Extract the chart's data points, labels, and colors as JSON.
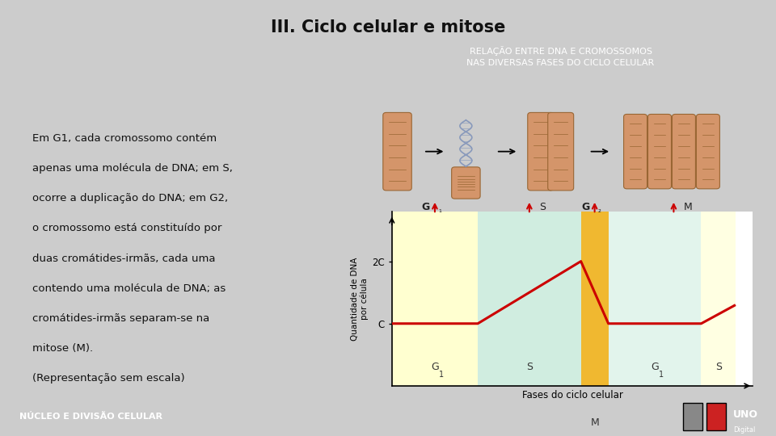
{
  "title": "III. Ciclo celular e mitose",
  "bg_color": "#cccccc",
  "white_panel_color": "#e8e8e8",
  "footer_bg": "#4a8a20",
  "footer_text": "NÚCLEO E DIVISÃO CELULAR",
  "footer_text_color": "#ffffff",
  "green_box_color": "#5a8a2a",
  "green_box_title": "RELAÇÃO ENTRE DNA E CROMOSSOMOS\nNAS DIVERSAS FASES DO CICLO CELULAR",
  "left_text_lines": [
    "Em G1, cada cromossomo contém",
    "apenas uma molécula de DNA; em S,",
    "ocorre a duplicação do DNA; em G2,",
    "o cromossomo está constituído por",
    "duas cromátides-irmãs, cada uma",
    "contendo uma molécula de DNA; as",
    "cromátides-irmãs separam-se na",
    "mitose (M).",
    "(Representação sem escala)"
  ],
  "chart_ylabel": "Quantidade de DNA\npor célula",
  "chart_xlabel": "Fases do ciclo celular",
  "zone_G1_color": "#ffffd0",
  "zone_S_color": "#d0ede0",
  "zone_M_color": "#f0b830",
  "ytick_labels": [
    "C",
    "2C"
  ],
  "line_color": "#cc0000",
  "line_width": 2.2,
  "chrom_color": "#d4956a",
  "chrom_edge": "#996633",
  "dna_color": "#8899bb"
}
